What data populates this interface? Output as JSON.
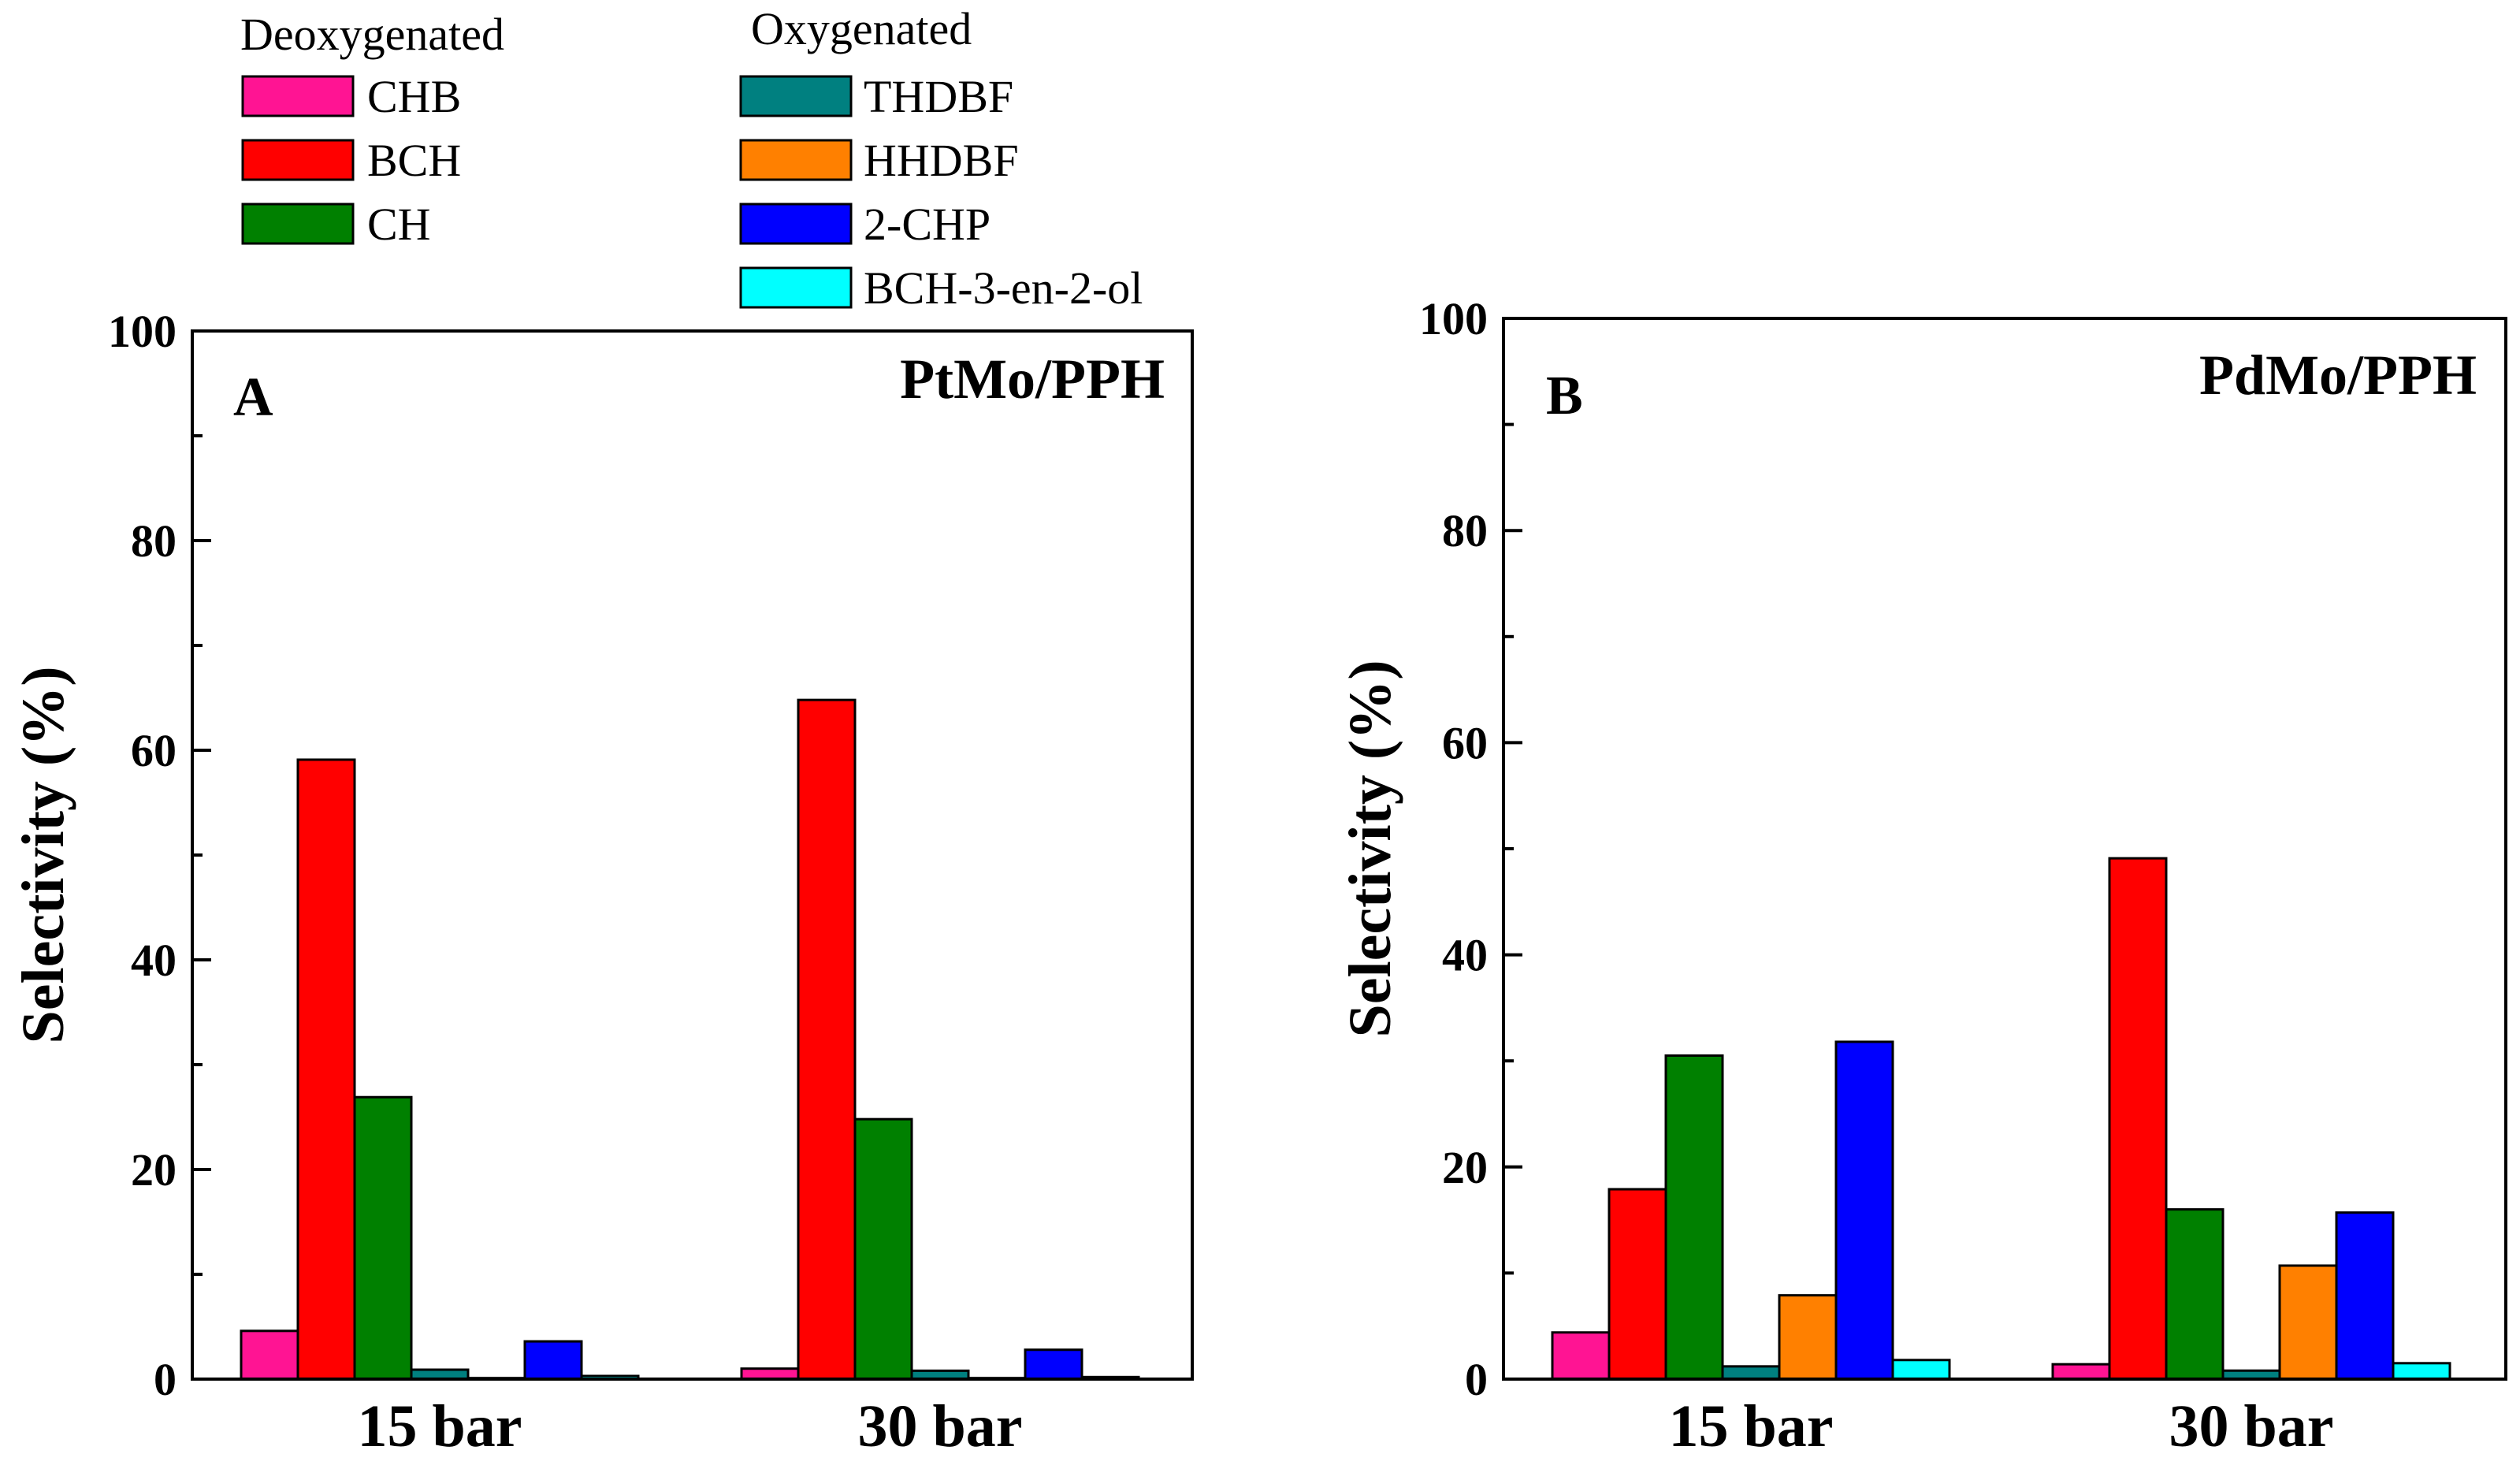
{
  "legend": {
    "groups": [
      {
        "title": "Deoxygenated",
        "items": [
          {
            "label": "CHB",
            "color": "#ff1493"
          },
          {
            "label": "BCH",
            "color": "#ff0000"
          },
          {
            "label": "CH",
            "color": "#008000"
          }
        ]
      },
      {
        "title": "Oxygenated",
        "items": [
          {
            "label": "THDBF",
            "color": "#008080"
          },
          {
            "label": "HHDBF",
            "color": "#ff8000"
          },
          {
            "label": "2-CHP",
            "color": "#0000ff"
          },
          {
            "label": "BCH-3-en-2-ol",
            "color": "#00ffff"
          }
        ]
      }
    ]
  },
  "chart_data": [
    {
      "type": "bar",
      "panel": "A",
      "title": "PtMo/PPH",
      "ylabel": "Selectivity (%)",
      "xlabel": "",
      "ylim": [
        0,
        100
      ],
      "yticks": [
        0,
        20,
        40,
        60,
        80,
        100
      ],
      "categories": [
        "15 bar",
        "30 bar"
      ],
      "series": [
        {
          "name": "CHB",
          "color": "#ff1493",
          "values": [
            4.6,
            1.0
          ]
        },
        {
          "name": "BCH",
          "color": "#ff0000",
          "values": [
            59.1,
            64.8
          ]
        },
        {
          "name": "CH",
          "color": "#008000",
          "values": [
            26.9,
            24.8
          ]
        },
        {
          "name": "THDBF",
          "color": "#008080",
          "values": [
            0.9,
            0.8
          ]
        },
        {
          "name": "HHDBF",
          "color": "#ff8000",
          "values": [
            0.1,
            0.1
          ]
        },
        {
          "name": "2-CHP",
          "color": "#0000ff",
          "values": [
            3.6,
            2.8
          ]
        },
        {
          "name": "BCH-3-en-2-ol",
          "color": "#00ffff",
          "values": [
            0.3,
            0.2
          ]
        }
      ]
    },
    {
      "type": "bar",
      "panel": "B",
      "title": "PdMo/PPH",
      "ylabel": "Selectivity (%)",
      "xlabel": "",
      "ylim": [
        0,
        100
      ],
      "yticks": [
        0,
        20,
        40,
        60,
        80,
        100
      ],
      "categories": [
        "15 bar",
        "30 bar"
      ],
      "series": [
        {
          "name": "CHB",
          "color": "#ff1493",
          "values": [
            4.4,
            1.4
          ]
        },
        {
          "name": "BCH",
          "color": "#ff0000",
          "values": [
            17.9,
            49.1
          ]
        },
        {
          "name": "CH",
          "color": "#008000",
          "values": [
            30.5,
            16.0
          ]
        },
        {
          "name": "THDBF",
          "color": "#008080",
          "values": [
            1.2,
            0.8
          ]
        },
        {
          "name": "HHDBF",
          "color": "#ff8000",
          "values": [
            7.9,
            10.7
          ]
        },
        {
          "name": "2-CHP",
          "color": "#0000ff",
          "values": [
            31.8,
            15.7
          ]
        },
        {
          "name": "BCH-3-en-2-ol",
          "color": "#00ffff",
          "values": [
            1.8,
            1.5
          ]
        }
      ]
    }
  ]
}
